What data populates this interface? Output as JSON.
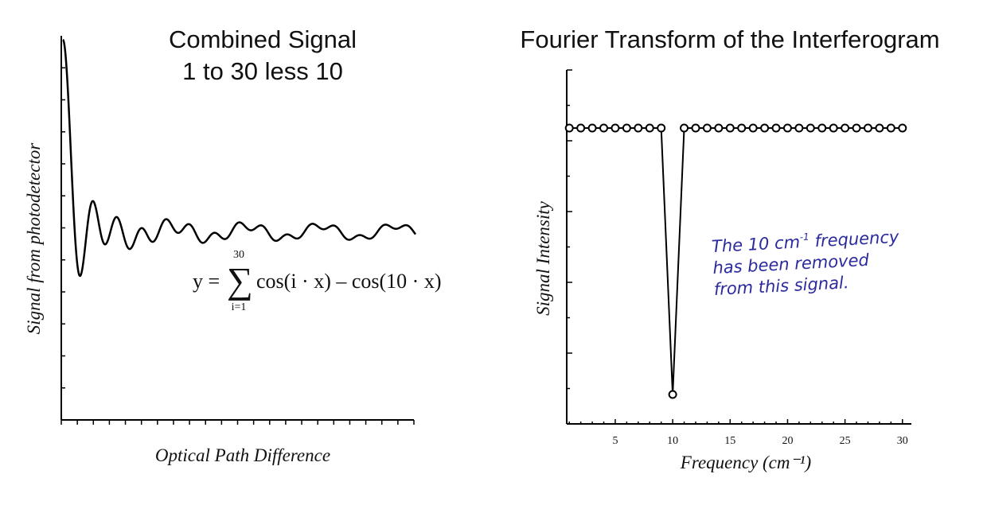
{
  "chart_data": [
    {
      "type": "line",
      "title": "Combined Signal",
      "subtitle": "1 to 30 less 10",
      "xlabel": "Optical Path Difference",
      "ylabel": "Signal from photodetector",
      "equation": {
        "lhs": "y =",
        "sum_symbol": "∑",
        "upper": "30",
        "lower": "i=1",
        "body": "cos(i · x) – cos(10 · x)"
      },
      "x_range": [
        0,
        3
      ],
      "series": [
        {
          "formula_terms_from": 1,
          "formula_terms_to": 30,
          "excluded_term": 10
        }
      ]
    },
    {
      "type": "scatter",
      "title": "Fourier Transform of the Interferogram",
      "xlabel": "Frequency (cm⁻¹)",
      "ylabel": "Signal Intensity",
      "xlim": [
        0.5,
        30.5
      ],
      "xticks": [
        "5",
        "10",
        "15",
        "20",
        "25",
        "30"
      ],
      "ylim": [
        0,
        1.25
      ],
      "x": [
        1,
        2,
        3,
        4,
        5,
        6,
        7,
        8,
        9,
        10,
        11,
        12,
        13,
        14,
        15,
        16,
        17,
        18,
        19,
        20,
        21,
        22,
        23,
        24,
        25,
        26,
        27,
        28,
        29,
        30
      ],
      "y": [
        1,
        1,
        1,
        1,
        1,
        1,
        1,
        1,
        1,
        0,
        1,
        1,
        1,
        1,
        1,
        1,
        1,
        1,
        1,
        1,
        1,
        1,
        1,
        1,
        1,
        1,
        1,
        1,
        1,
        1
      ],
      "annotation": [
        "The 10 cm",
        "-1",
        " frequency",
        "has been removed",
        "from this signal."
      ]
    }
  ]
}
